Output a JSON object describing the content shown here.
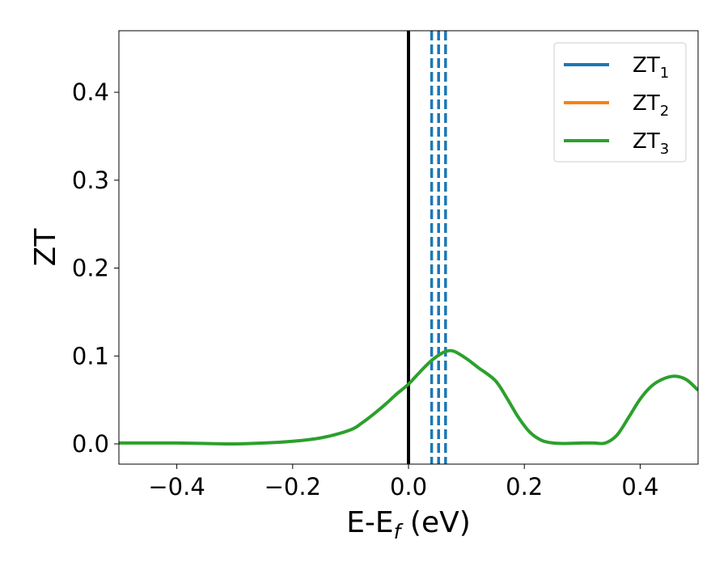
{
  "chart_data": {
    "type": "line",
    "title": "",
    "xlabel": "E-E",
    "xlabel_subscript": "f",
    "xlabel_unit": " (eV)",
    "ylabel": "ZT",
    "xlim": [
      -0.5,
      0.5
    ],
    "ylim": [
      -0.023,
      0.47
    ],
    "xticks": [
      -0.4,
      -0.2,
      0.0,
      0.2,
      0.4
    ],
    "xtick_labels": [
      "−0.4",
      "−0.2",
      "0.0",
      "0.2",
      "0.4"
    ],
    "yticks": [
      0.0,
      0.1,
      0.2,
      0.3,
      0.4
    ],
    "ytick_labels": [
      "0.0",
      "0.1",
      "0.2",
      "0.3",
      "0.4"
    ],
    "grid": false,
    "legend_position": "top-right",
    "legend": [
      {
        "base": "ZT",
        "sub": "1",
        "color": "#1f77b4"
      },
      {
        "base": "ZT",
        "sub": "2",
        "color": "#ff7f0e"
      },
      {
        "base": "ZT",
        "sub": "3",
        "color": "#2ca02c"
      }
    ],
    "series": [
      {
        "color": "#2ca02c",
        "x": [
          -0.5,
          -0.45,
          -0.4,
          -0.35,
          -0.3,
          -0.25,
          -0.2,
          -0.15,
          -0.1,
          -0.08,
          -0.06,
          -0.04,
          -0.02,
          0.0,
          0.02,
          0.04,
          0.06,
          0.07,
          0.08,
          0.1,
          0.12,
          0.15,
          0.17,
          0.19,
          0.21,
          0.23,
          0.25,
          0.27,
          0.3,
          0.32,
          0.34,
          0.36,
          0.38,
          0.4,
          0.42,
          0.44,
          0.46,
          0.48,
          0.5
        ],
        "y": [
          0.001,
          0.001,
          0.001,
          0.0005,
          0.0,
          0.001,
          0.003,
          0.007,
          0.016,
          0.024,
          0.034,
          0.045,
          0.057,
          0.068,
          0.082,
          0.095,
          0.104,
          0.106,
          0.105,
          0.097,
          0.087,
          0.072,
          0.052,
          0.03,
          0.013,
          0.004,
          0.001,
          0.0005,
          0.001,
          0.001,
          0.001,
          0.01,
          0.03,
          0.051,
          0.066,
          0.074,
          0.077,
          0.073,
          0.061
        ]
      }
    ],
    "vertical_lines": [
      {
        "x": 0.0,
        "style": "solid",
        "color": "#000000"
      },
      {
        "x": 0.04,
        "style": "dashed",
        "color": "#1f77b4"
      },
      {
        "x": 0.052,
        "style": "dashed",
        "color": "#1f77b4"
      },
      {
        "x": 0.064,
        "style": "dashed",
        "color": "#1f77b4"
      }
    ]
  }
}
